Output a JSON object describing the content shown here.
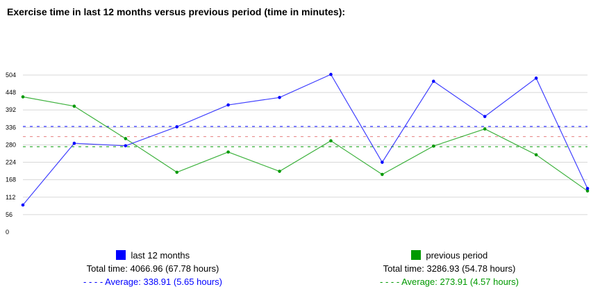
{
  "header": {
    "title": "Exercise time in last 12 months versus previous period (time in minutes):"
  },
  "colors": {
    "current": "#0000ff",
    "previous": "#009900",
    "grid": "#d8d8d8",
    "overall_avg": "#e06060"
  },
  "chart_data": {
    "type": "line",
    "title": "Exercise time in last 12 months versus previous period (time in minutes):",
    "xlabel": "",
    "ylabel": "",
    "ylim": [
      0,
      504
    ],
    "yticks": [
      0,
      56,
      112,
      168,
      224,
      280,
      336,
      392,
      448,
      504
    ],
    "grid": true,
    "legend_position": "bottom",
    "series": [
      {
        "name": "last 12 months",
        "color": "#0000ff",
        "values": [
          87,
          285,
          277,
          338,
          408,
          432,
          506,
          224,
          484,
          371,
          494,
          140
        ]
      },
      {
        "name": "previous period",
        "color": "#009900",
        "values": [
          434,
          404,
          300,
          192,
          257,
          195,
          293,
          185,
          276,
          331,
          248,
          132
        ]
      }
    ],
    "average_lines": [
      {
        "series": "last 12 months",
        "value": 338.91,
        "color": "#0000ff"
      },
      {
        "series": "previous period",
        "value": 273.91,
        "color": "#009900"
      },
      {
        "series": "overall",
        "value": 306.41,
        "color": "#e06060"
      }
    ]
  },
  "legend": {
    "current": {
      "label": "last 12 months",
      "total": "Total time: 4066.96 (67.78 hours)",
      "average": "- - - - Average: 338.91 (5.65 hours)"
    },
    "previous": {
      "label": "previous period",
      "total": "Total time: 3286.93 (54.78 hours)",
      "average": "- - - - Average: 273.91 (4.57 hours)"
    }
  }
}
